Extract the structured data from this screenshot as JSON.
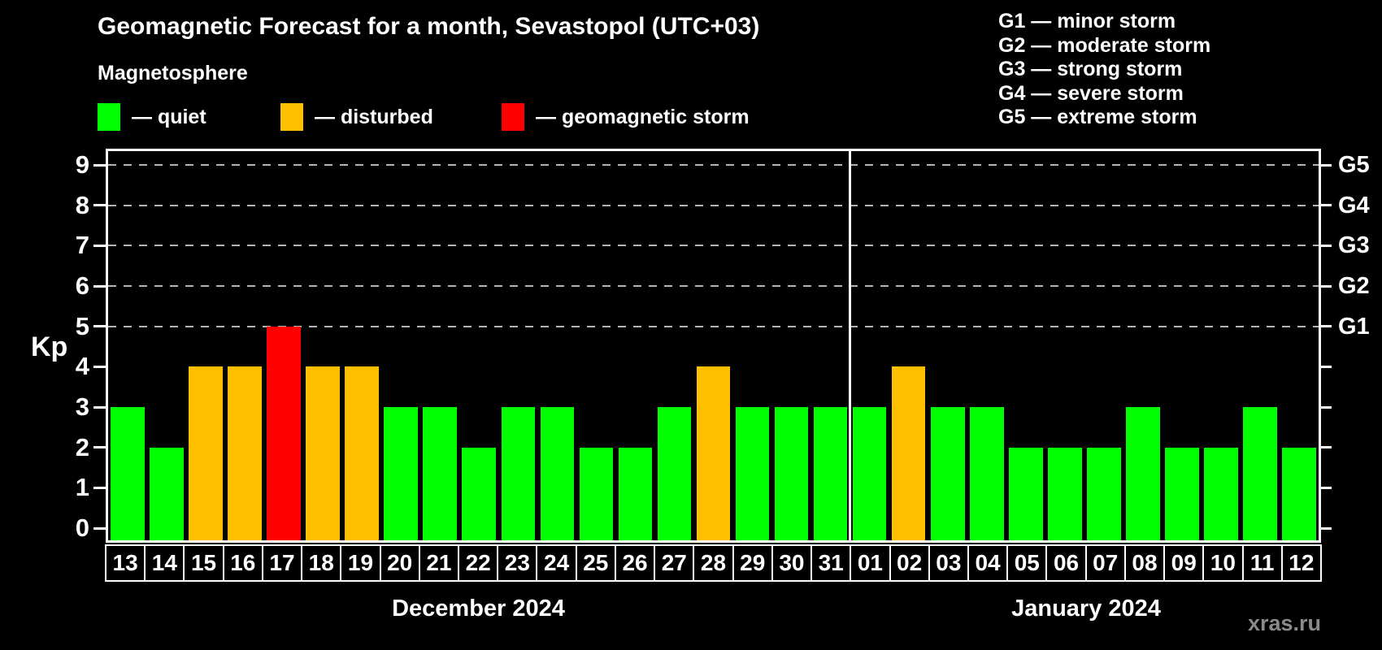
{
  "title": "Geomagnetic Forecast for a month, Sevastopol (UTC+03)",
  "subtitle": "Magnetosphere",
  "watermark": "xras.ru",
  "colors": {
    "quiet": "#00ff00",
    "disturbed": "#ffc000",
    "storm": "#ff0000",
    "grid": "#b4b4b4",
    "axis": "#ffffff",
    "background": "#000000"
  },
  "legend": [
    {
      "status": "quiet",
      "label": "— quiet"
    },
    {
      "status": "disturbed",
      "label": "— disturbed"
    },
    {
      "status": "storm",
      "label": "— geomagnetic storm"
    }
  ],
  "storm_scale_legend": [
    "G1 — minor storm",
    "G2 — moderate storm",
    "G3 — strong storm",
    "G4 — severe storm",
    "G5 — extreme storm"
  ],
  "y_axis": {
    "label": "Kp",
    "ticks": [
      0,
      1,
      2,
      3,
      4,
      5,
      6,
      7,
      8,
      9
    ]
  },
  "right_axis": {
    "labels": [
      {
        "kp": 5,
        "label": "G1"
      },
      {
        "kp": 6,
        "label": "G2"
      },
      {
        "kp": 7,
        "label": "G3"
      },
      {
        "kp": 8,
        "label": "G4"
      },
      {
        "kp": 9,
        "label": "G5"
      }
    ]
  },
  "months": [
    {
      "label": "December 2024",
      "days": 19
    },
    {
      "label": "January 2024",
      "days": 12
    }
  ],
  "chart_data": {
    "type": "bar",
    "title": "Geomagnetic Forecast for a month, Sevastopol (UTC+03)",
    "ylabel": "Kp",
    "ylim": [
      0,
      9
    ],
    "gridlines_at": [
      5,
      6,
      7,
      8,
      9
    ],
    "legend_position": "top-left",
    "categories": [
      "13",
      "14",
      "15",
      "16",
      "17",
      "18",
      "19",
      "20",
      "21",
      "22",
      "23",
      "24",
      "25",
      "26",
      "27",
      "28",
      "29",
      "30",
      "31",
      "01",
      "02",
      "03",
      "04",
      "05",
      "06",
      "07",
      "08",
      "09",
      "10",
      "11",
      "12"
    ],
    "values": [
      3,
      2,
      4,
      4,
      5,
      4,
      4,
      3,
      3,
      2,
      3,
      3,
      2,
      2,
      3,
      4,
      3,
      3,
      3,
      3,
      4,
      3,
      3,
      2,
      2,
      2,
      3,
      2,
      2,
      3,
      2
    ],
    "statuses": [
      "quiet",
      "quiet",
      "disturbed",
      "disturbed",
      "storm",
      "disturbed",
      "disturbed",
      "quiet",
      "quiet",
      "quiet",
      "quiet",
      "quiet",
      "quiet",
      "quiet",
      "quiet",
      "disturbed",
      "quiet",
      "quiet",
      "quiet",
      "quiet",
      "disturbed",
      "quiet",
      "quiet",
      "quiet",
      "quiet",
      "quiet",
      "quiet",
      "quiet",
      "quiet",
      "quiet",
      "quiet"
    ]
  }
}
